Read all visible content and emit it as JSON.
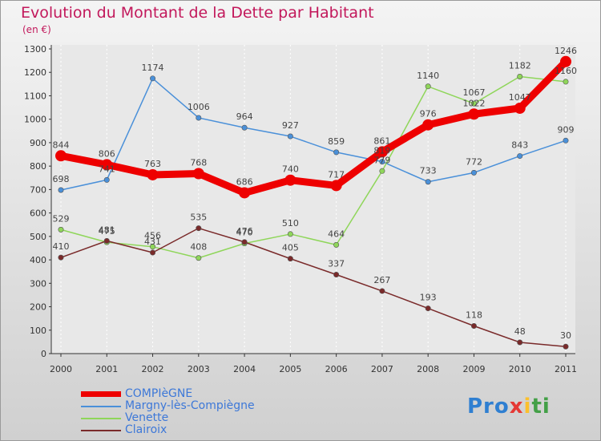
{
  "title": "Evolution du Montant de la Dette par Habitant",
  "subtitle": "(en €)",
  "logo": {
    "text": "Proxiti",
    "parts": [
      "Pro",
      "x",
      "i",
      "ti"
    ]
  },
  "colors": {
    "title": "#c2185b",
    "legend_text": "#3d78d8"
  },
  "chart_data": {
    "type": "line",
    "x": [
      "2000",
      "2001",
      "2002",
      "2003",
      "2004",
      "2005",
      "2006",
      "2007",
      "2008",
      "2009",
      "2010",
      "2011"
    ],
    "ylim": [
      0,
      1300
    ],
    "yticks": [
      0,
      100,
      200,
      300,
      400,
      500,
      600,
      700,
      800,
      900,
      1000,
      1100,
      1200,
      1300
    ],
    "grid": "vertical",
    "legend_position": "bottom-left",
    "series": [
      {
        "name": "COMPIèGNE",
        "color": "#ee0000",
        "thick": true,
        "values": [
          844,
          806,
          763,
          768,
          686,
          740,
          717,
          861,
          976,
          1022,
          1047,
          1246
        ]
      },
      {
        "name": "Margny-lès-Compiègne",
        "color": "#4a90d9",
        "thick": false,
        "values": [
          698,
          741,
          1174,
          1006,
          964,
          927,
          859,
          819,
          733,
          772,
          843,
          909
        ]
      },
      {
        "name": "Venette",
        "color": "#8fd65a",
        "thick": false,
        "values": [
          529,
          475,
          456,
          408,
          470,
          510,
          464,
          779,
          1140,
          1067,
          1182,
          1160
        ]
      },
      {
        "name": "Clairoix",
        "color": "#7a2a2a",
        "thick": false,
        "values": [
          410,
          481,
          431,
          535,
          476,
          405,
          337,
          267,
          193,
          118,
          48,
          30
        ]
      }
    ]
  }
}
